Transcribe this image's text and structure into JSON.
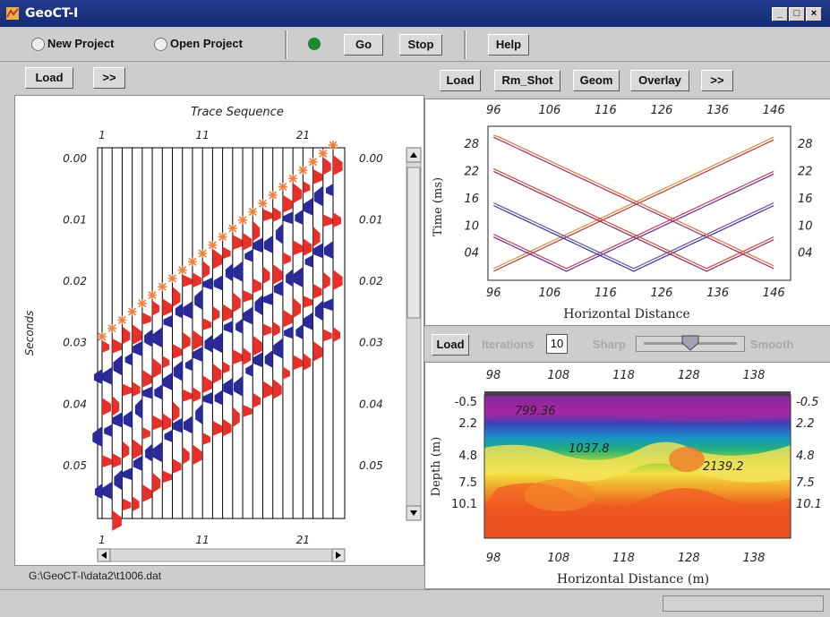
{
  "window": {
    "title": "GeoCT-I",
    "minimize": "_",
    "maximize": "□",
    "close": "×"
  },
  "toolbar": {
    "new_project": "New Project",
    "open_project": "Open Project",
    "go": "Go",
    "stop": "Stop",
    "help": "Help",
    "status_color": "#1e8a2e"
  },
  "left": {
    "load": "Load",
    "more": ">>",
    "title": "Trace Sequence",
    "top_ticks": [
      "1",
      "11",
      "21"
    ],
    "bottom_ticks": [
      "1",
      "11",
      "21"
    ],
    "y_ticks": [
      "0.00",
      "0.01",
      "0.02",
      "0.03",
      "0.04",
      "0.05"
    ],
    "ylabel": "Seconds",
    "file": "G:\\GeoCT-I\\data2\\t1006.dat"
  },
  "right_top": {
    "load": "Load",
    "rm_shot": "Rm_Shot",
    "geom": "Geom",
    "overlay": "Overlay",
    "more": ">>",
    "x_ticks": [
      "96",
      "106",
      "116",
      "126",
      "136",
      "146"
    ],
    "y_ticks": [
      "28",
      "22",
      "16",
      "10",
      "04"
    ],
    "ylabel": "Time (ms)",
    "xlabel": "Horizontal Distance"
  },
  "right_bottom": {
    "load": "Load",
    "iterations_label": "Iterations",
    "iterations_value": "10",
    "sharp": "Sharp",
    "smooth": "Smooth",
    "slider_level": 0.5,
    "x_ticks": [
      "98",
      "108",
      "118",
      "128",
      "138"
    ],
    "y_ticks": [
      "-0.5",
      "2.2",
      "4.8",
      "7.5",
      "10.1"
    ],
    "y_ticks_right": [
      "-0.5",
      "2.2",
      "4.8",
      "7.5",
      "10.1"
    ],
    "ylabel": "Depth (m)",
    "xlabel": "Horizontal Distance (m)",
    "annotations": [
      "799.36",
      "1037.8",
      "2139.2"
    ]
  }
}
